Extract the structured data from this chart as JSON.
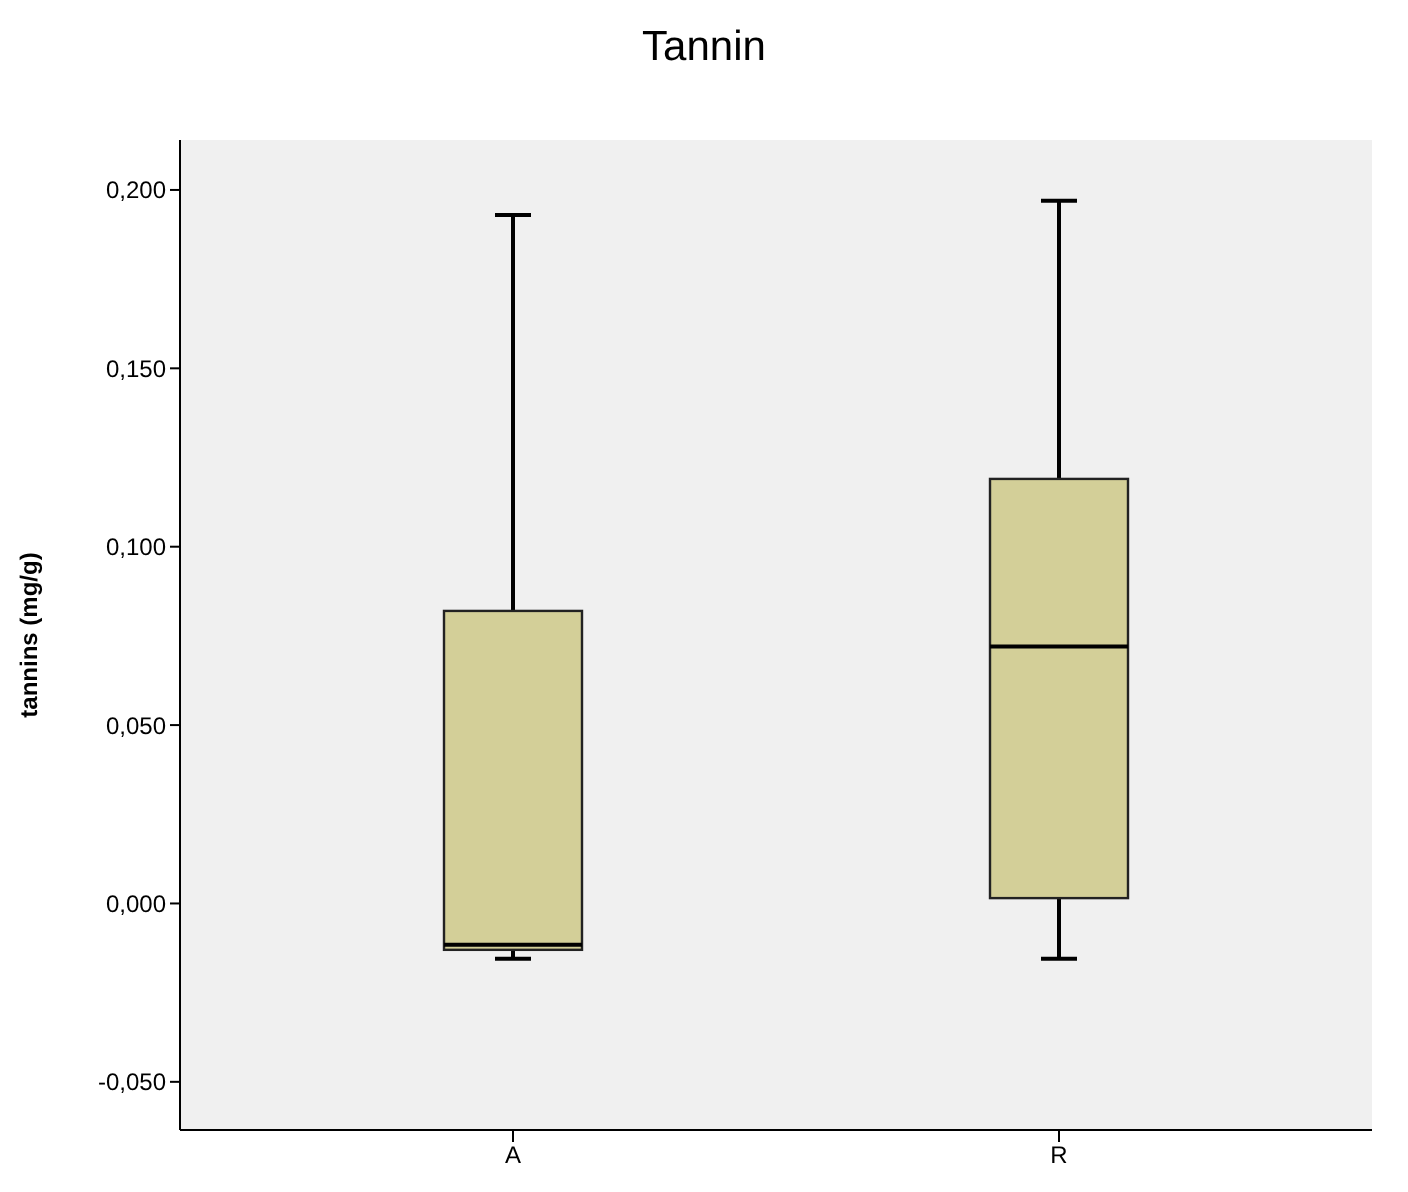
{
  "chart_data": {
    "type": "box",
    "title": "Tannin",
    "ylabel": "tannins (mg/g)",
    "categories": [
      "A",
      "R"
    ],
    "color": "#d3cf98",
    "boxes": [
      {
        "low": -0.0155,
        "q1": -0.013,
        "median": -0.0116,
        "q3": 0.082,
        "high": 0.193
      },
      {
        "low": -0.0155,
        "q1": 0.0015,
        "median": 0.072,
        "q3": 0.119,
        "high": 0.197
      }
    ],
    "ylim": [
      -0.0635,
      0.214
    ],
    "yticks": [
      {
        "value": -0.05,
        "label": "-0,050"
      },
      {
        "value": 0,
        "label": "0,000"
      },
      {
        "value": 0.05,
        "label": "0,050"
      },
      {
        "value": 0.1,
        "label": "0,100"
      },
      {
        "value": 0.15,
        "label": "0,150"
      },
      {
        "value": 0.2,
        "label": "0,200"
      }
    ]
  }
}
